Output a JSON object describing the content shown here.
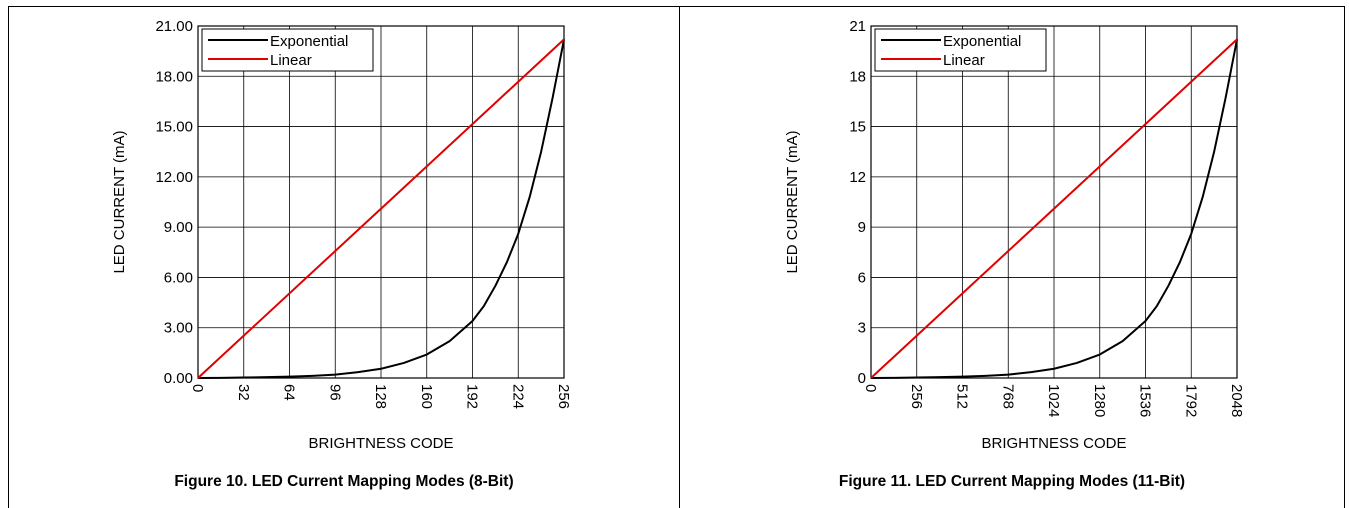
{
  "chart_data": [
    {
      "type": "line",
      "caption": "Figure 10. LED Current Mapping Modes (8-Bit)",
      "xlabel": "BRIGHTNESS CODE",
      "ylabel": "LED CURRENT (mA)",
      "xlim": [
        0,
        256
      ],
      "ylim": [
        0,
        21
      ],
      "xticks": [
        0,
        32,
        64,
        96,
        128,
        160,
        192,
        224,
        256
      ],
      "xtick_labels": [
        "0",
        "32",
        "64",
        "96",
        "128",
        "160",
        "192",
        "224",
        "256"
      ],
      "yticks": [
        0,
        3,
        6,
        9,
        12,
        15,
        18,
        21
      ],
      "ytick_labels": [
        "0.00",
        "3.00",
        "6.00",
        "9.00",
        "12.00",
        "15.00",
        "18.00",
        "21.00"
      ],
      "grid": true,
      "legend_position": "top-left",
      "series": [
        {
          "name": "Exponential",
          "color": "#000000",
          "x": [
            0,
            16,
            32,
            48,
            64,
            80,
            96,
            112,
            128,
            144,
            160,
            176,
            192,
            200,
            208,
            216,
            224,
            232,
            240,
            248,
            256
          ],
          "y": [
            0,
            0.01,
            0.03,
            0.05,
            0.08,
            0.13,
            0.2,
            0.35,
            0.55,
            0.9,
            1.4,
            2.2,
            3.4,
            4.3,
            5.5,
            6.9,
            8.6,
            10.8,
            13.5,
            16.7,
            20.2
          ]
        },
        {
          "name": "Linear",
          "color": "#e00000",
          "x": [
            0,
            256
          ],
          "y": [
            0,
            20.2
          ]
        }
      ]
    },
    {
      "type": "line",
      "caption": "Figure 11. LED Current Mapping Modes (11-Bit)",
      "xlabel": "BRIGHTNESS CODE",
      "ylabel": "LED CURRENT (mA)",
      "xlim": [
        0,
        2048
      ],
      "ylim": [
        0,
        21
      ],
      "xticks": [
        0,
        256,
        512,
        768,
        1024,
        1280,
        1536,
        1792,
        2048
      ],
      "xtick_labels": [
        "0",
        "256",
        "512",
        "768",
        "1024",
        "1280",
        "1536",
        "1792",
        "2048"
      ],
      "yticks": [
        0,
        3,
        6,
        9,
        12,
        15,
        18,
        21
      ],
      "ytick_labels": [
        "0",
        "3",
        "6",
        "9",
        "12",
        "15",
        "18",
        "21"
      ],
      "grid": true,
      "legend_position": "top-left",
      "series": [
        {
          "name": "Exponential",
          "color": "#000000",
          "x": [
            0,
            128,
            256,
            384,
            512,
            640,
            768,
            896,
            1024,
            1152,
            1280,
            1408,
            1536,
            1600,
            1664,
            1728,
            1792,
            1856,
            1920,
            1984,
            2048
          ],
          "y": [
            0,
            0.01,
            0.03,
            0.05,
            0.08,
            0.13,
            0.2,
            0.35,
            0.55,
            0.9,
            1.4,
            2.2,
            3.4,
            4.3,
            5.5,
            6.9,
            8.6,
            10.8,
            13.5,
            16.7,
            20.2
          ]
        },
        {
          "name": "Linear",
          "color": "#e00000",
          "x": [
            0,
            2048
          ],
          "y": [
            0,
            20.2
          ]
        }
      ]
    }
  ]
}
